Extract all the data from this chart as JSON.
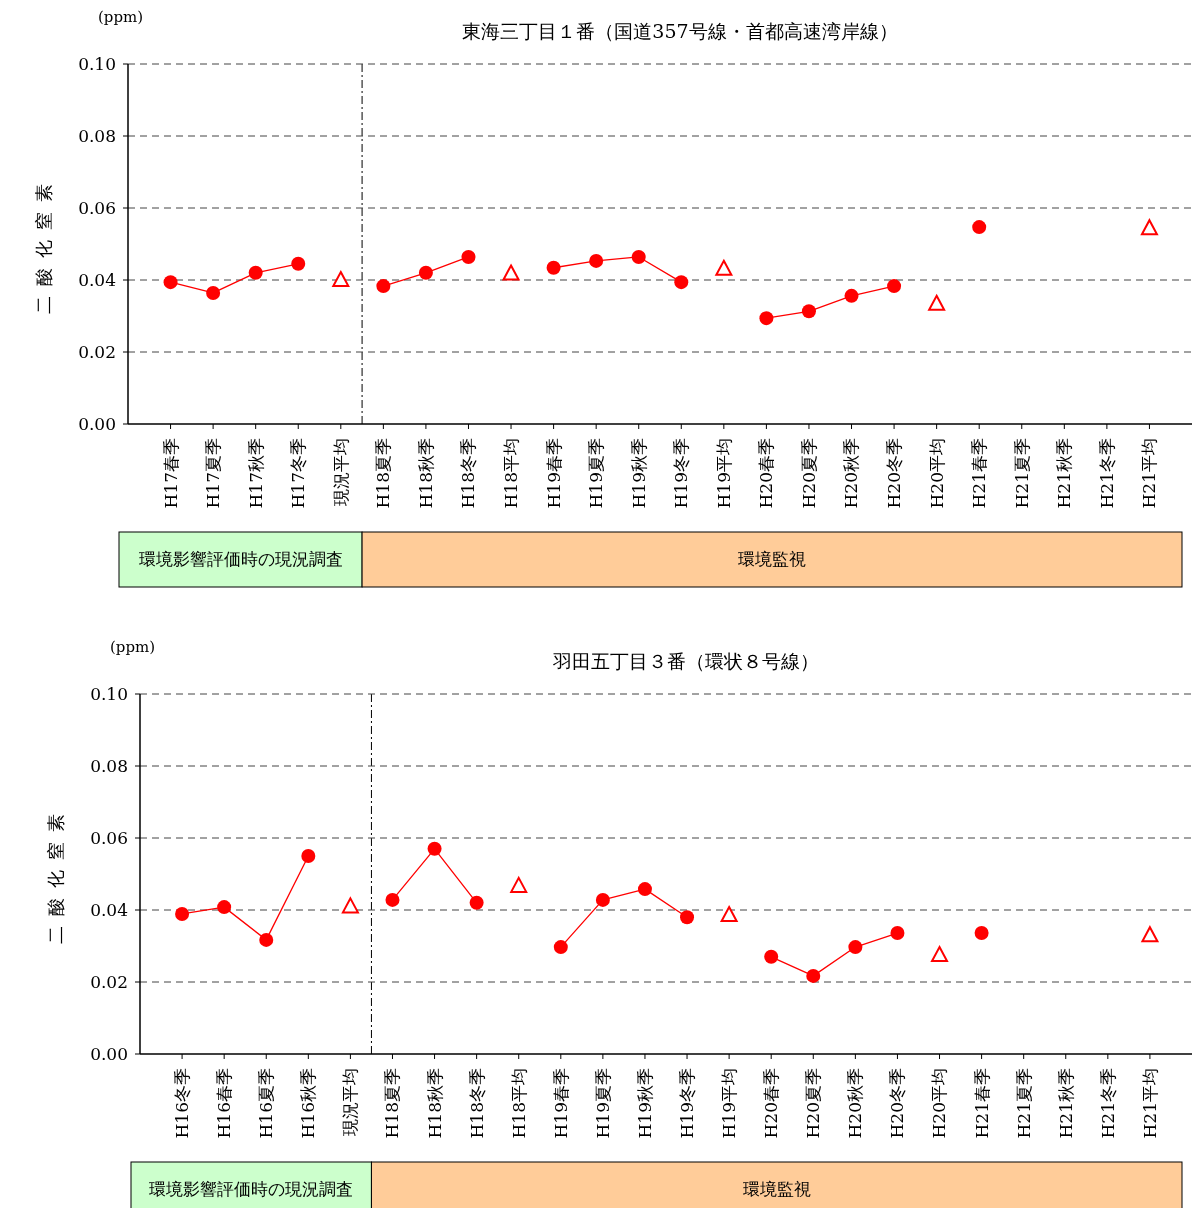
{
  "chart_data": [
    {
      "type": "line",
      "title": "東海三丁目１番（国道357号線・首都高速湾岸線）",
      "ylabel": "二酸化窒素",
      "annotations": [
        "(ppm)",
        "環境影響評価時の現況調査",
        "環境監視"
      ],
      "categories": [
        "H17春季",
        "H17夏季",
        "H17秋季",
        "H17冬季",
        "現況平均",
        "H18夏季",
        "H18秋季",
        "H18冬季",
        "H18平均",
        "H19春季",
        "H19夏季",
        "H19秋季",
        "H19冬季",
        "H19平均",
        "H20春季",
        "H20夏季",
        "H20秋季",
        "H20冬季",
        "H20平均",
        "H21春季",
        "H21夏季",
        "H21秋季",
        "H21冬季",
        "H21平均"
      ],
      "series": [
        {
          "color": "#ff0000",
          "marker": "circle",
          "values": [
            0.0394,
            0.0364,
            0.042,
            0.0445,
            null,
            0.0383,
            0.042,
            0.0464,
            null,
            0.0434,
            0.0453,
            0.0464,
            0.0394,
            null,
            0.0294,
            0.0313,
            0.0356,
            0.0383,
            null,
            0.0547,
            null,
            null,
            null,
            null
          ]
        },
        {
          "type": "scatter",
          "color": "#ff0000",
          "marker": "triangle",
          "values": [
            null,
            null,
            null,
            null,
            0.04,
            null,
            null,
            null,
            0.0418,
            null,
            null,
            null,
            null,
            0.0431,
            null,
            null,
            null,
            null,
            0.0334,
            null,
            null,
            null,
            null,
            0.0544
          ]
        }
      ],
      "ylim": [
        0,
        0.1
      ],
      "yticks": [
        {
          "value": 0,
          "label": "0.00"
        },
        {
          "value": 0.02,
          "label": "0.02"
        },
        {
          "value": 0.04,
          "label": "0.04"
        },
        {
          "value": 0.06,
          "label": "0.06"
        },
        {
          "value": 0.08,
          "label": "0.08"
        },
        {
          "value": 0.1,
          "label": "0.10"
        }
      ],
      "grid": "y",
      "ref_lines": [
        {
          "axis": "x",
          "value": "現況平均",
          "color": "#000000",
          "line_style": "dashdot"
        }
      ]
    },
    {
      "type": "line",
      "title": "羽田五丁目３番（環状８号線）",
      "ylabel": "二酸化窒素",
      "annotations": [
        "(ppm)",
        "環境影響評価時の現況調査",
        "環境監視"
      ],
      "categories": [
        "H16冬季",
        "H16春季",
        "H16夏季",
        "H16秋季",
        "現況平均",
        "H18夏季",
        "H18秋季",
        "H18冬季",
        "H18平均",
        "H19春季",
        "H19夏季",
        "H19秋季",
        "H19冬季",
        "H19平均",
        "H20春季",
        "H20夏季",
        "H20秋季",
        "H20冬季",
        "H20平均",
        "H21春季",
        "H21夏季",
        "H21秋季",
        "H21冬季",
        "H21平均"
      ],
      "series": [
        {
          "color": "#ff0000",
          "marker": "circle",
          "values": [
            0.0389,
            0.0408,
            0.0317,
            0.055,
            null,
            0.0428,
            0.057,
            0.042,
            null,
            0.0297,
            0.0428,
            0.0458,
            0.038,
            null,
            0.027,
            0.0217,
            0.0297,
            0.0336,
            null,
            0.0336,
            null,
            null,
            null,
            null
          ]
        },
        {
          "type": "scatter",
          "color": "#ff0000",
          "marker": "triangle",
          "values": [
            null,
            null,
            null,
            null,
            0.041,
            null,
            null,
            null,
            0.0467,
            null,
            null,
            null,
            null,
            0.0386,
            null,
            null,
            null,
            null,
            0.0275,
            null,
            null,
            null,
            null,
            0.033
          ]
        }
      ],
      "ylim": [
        0,
        0.1
      ],
      "yticks": [
        {
          "value": 0,
          "label": "0.00"
        },
        {
          "value": 0.02,
          "label": "0.02"
        },
        {
          "value": 0.04,
          "label": "0.04"
        },
        {
          "value": 0.06,
          "label": "0.06"
        },
        {
          "value": 0.08,
          "label": "0.08"
        },
        {
          "value": 0.1,
          "label": "0.10"
        }
      ],
      "grid": "y",
      "ref_lines": [
        {
          "axis": "x",
          "value": "現況平均",
          "color": "#000000",
          "line_style": "dashdot"
        }
      ]
    }
  ]
}
